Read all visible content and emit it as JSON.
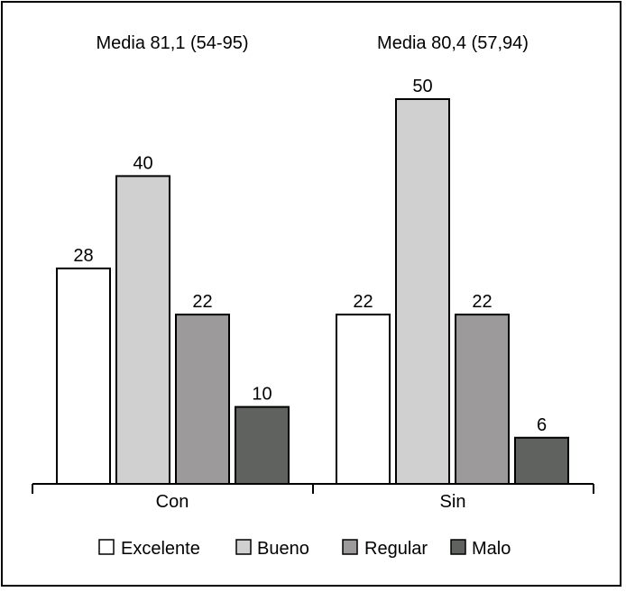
{
  "chart_data": {
    "type": "bar",
    "categories": [
      "Con",
      "Sin"
    ],
    "annotations": [
      "Media 81,1 (54-95)",
      "Media 80,4 (57,94)"
    ],
    "series": [
      {
        "name": "Excelente",
        "values": [
          28,
          22
        ],
        "color": "#ffffff"
      },
      {
        "name": "Bueno",
        "values": [
          40,
          50
        ],
        "color": "#d0d0d0"
      },
      {
        "name": "Regular",
        "values": [
          22,
          22
        ],
        "color": "#9c9a9b"
      },
      {
        "name": "Malo",
        "values": [
          10,
          6
        ],
        "color": "#60625f"
      }
    ],
    "ylim": [
      0,
      50
    ],
    "legend_position": "bottom",
    "grid": false,
    "axis_color": "#000000"
  }
}
